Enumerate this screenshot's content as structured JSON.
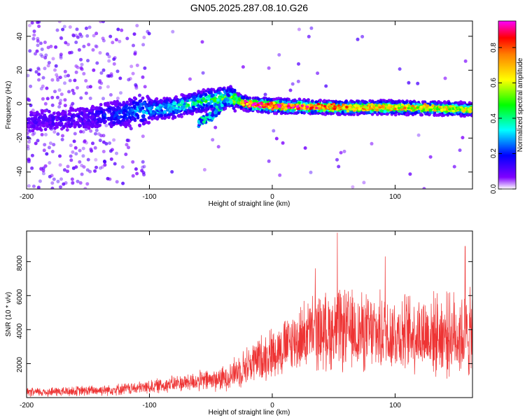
{
  "title": "GN05.2025.287.08.10.G26",
  "chart_data": [
    {
      "type": "heatmap",
      "name": "spectrogram",
      "xlabel": "Height of straight line (km)",
      "ylabel": "Frequency (Hz)",
      "xlim": [
        -200,
        163
      ],
      "ylim": [
        -50,
        49
      ],
      "xticks": [
        -200,
        -100,
        0,
        100
      ],
      "xtick_labels": [
        "-200",
        "-100",
        "0",
        "100"
      ],
      "yticks": [
        40,
        20,
        0,
        -20,
        -40
      ],
      "ytick_labels": [
        "40",
        "20",
        "0",
        "-20",
        "-40"
      ],
      "colorbar": {
        "label": "Normalized spectral amplitude",
        "range": [
          0,
          0.95
        ],
        "ticks": [
          0,
          0.2,
          0.4,
          0.6,
          0.8
        ],
        "tick_labels": [
          "0.0",
          "0.2",
          "0.4",
          "0.6",
          "0.8"
        ],
        "colormap": [
          "#ffffff",
          "#7f00ff",
          "#0000ff",
          "#00ffff",
          "#00ff00",
          "#ffff00",
          "#ff8000",
          "#ff0000",
          "#ff00ff"
        ]
      },
      "ridge": {
        "description_points": [
          {
            "x": -200,
            "f": -10,
            "amp": 0.12
          },
          {
            "x": -150,
            "f": -8,
            "amp": 0.15
          },
          {
            "x": -110,
            "f": -4,
            "amp": 0.3
          },
          {
            "x": -80,
            "f": -2,
            "amp": 0.4
          },
          {
            "x": -55,
            "f": 2,
            "amp": 0.45
          },
          {
            "x": -35,
            "f": 4,
            "amp": 0.55
          },
          {
            "x": -20,
            "f": 0,
            "amp": 0.85
          },
          {
            "x": 0,
            "f": -1,
            "amp": 0.9
          },
          {
            "x": 50,
            "f": -2,
            "amp": 0.75
          },
          {
            "x": 100,
            "f": -2,
            "amp": 0.7
          },
          {
            "x": 163,
            "f": -3,
            "amp": 0.6
          }
        ],
        "branch": [
          {
            "x": -60,
            "f": -11
          },
          {
            "x": -45,
            "f": -5
          },
          {
            "x": -35,
            "f": 4
          }
        ]
      }
    },
    {
      "type": "line",
      "name": "snr",
      "color": "#ee3333",
      "xlabel": "Height of straight line (km)",
      "ylabel": "SNR (10 * v/v)",
      "xlim": [
        -200,
        163
      ],
      "ylim": [
        0,
        9800
      ],
      "xticks": [
        -200,
        -100,
        0,
        100
      ],
      "xtick_labels": [
        "-200",
        "-100",
        "0",
        "100"
      ],
      "yticks": [
        2000,
        4000,
        6000,
        8000
      ],
      "ytick_labels": [
        "2000",
        "4000",
        "6000",
        "8000"
      ],
      "envelope": [
        {
          "x": -200,
          "mean": 300,
          "spread": 250
        },
        {
          "x": -150,
          "mean": 400,
          "spread": 300
        },
        {
          "x": -110,
          "mean": 550,
          "spread": 350
        },
        {
          "x": -70,
          "mean": 900,
          "spread": 500
        },
        {
          "x": -40,
          "mean": 1100,
          "spread": 700
        },
        {
          "x": -25,
          "mean": 1700,
          "spread": 1000
        },
        {
          "x": -10,
          "mean": 2300,
          "spread": 1300
        },
        {
          "x": 10,
          "mean": 3000,
          "spread": 1600
        },
        {
          "x": 30,
          "mean": 3800,
          "spread": 2000
        },
        {
          "x": 55,
          "mean": 4000,
          "spread": 2300
        },
        {
          "x": 80,
          "mean": 3800,
          "spread": 2200
        },
        {
          "x": 110,
          "mean": 3800,
          "spread": 2200
        },
        {
          "x": 140,
          "mean": 3700,
          "spread": 2300
        },
        {
          "x": 163,
          "mean": 3700,
          "spread": 2500
        }
      ],
      "peaks": [
        {
          "x": 53,
          "y": 9700
        },
        {
          "x": 157,
          "y": 8900
        },
        {
          "x": 92,
          "y": 8300
        },
        {
          "x": 35,
          "y": 7600
        }
      ]
    }
  ]
}
